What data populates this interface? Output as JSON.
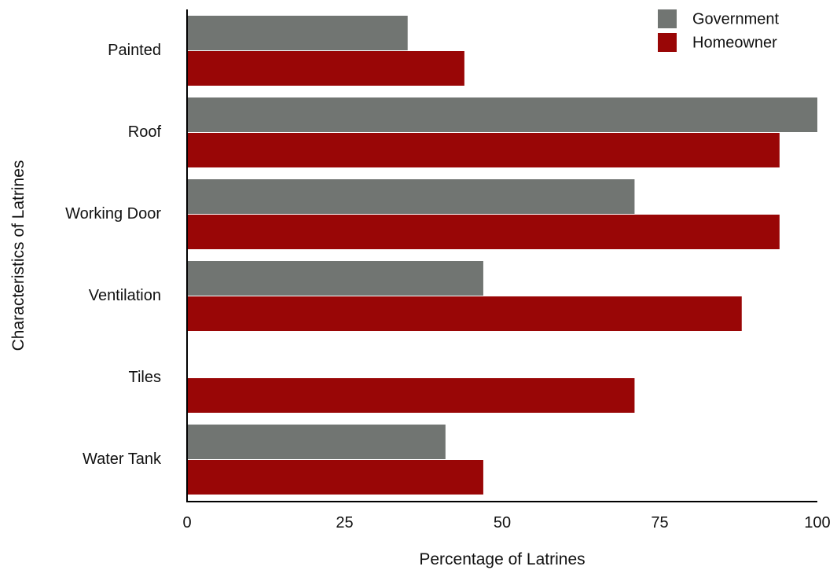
{
  "chart_data": {
    "type": "bar",
    "orientation": "horizontal",
    "categories": [
      "Painted",
      "Roof",
      "Working Door",
      "Ventilation",
      "Tiles",
      "Water Tank"
    ],
    "series": [
      {
        "name": "Government",
        "values": [
          35,
          100,
          71,
          47,
          0,
          41
        ]
      },
      {
        "name": "Homeowner",
        "values": [
          44,
          94,
          94,
          88,
          71,
          47
        ]
      }
    ],
    "xlabel": "Percentage of Latrines",
    "ylabel": "Characteristics of Latrines",
    "xlim": [
      0,
      100
    ],
    "xticks": [
      "0",
      "25",
      "50",
      "75",
      "100"
    ],
    "grid": false,
    "legend_position": "top-right"
  },
  "colors": {
    "Government": "#717572",
    "Homeowner": "#990606",
    "axis": "#000000"
  }
}
